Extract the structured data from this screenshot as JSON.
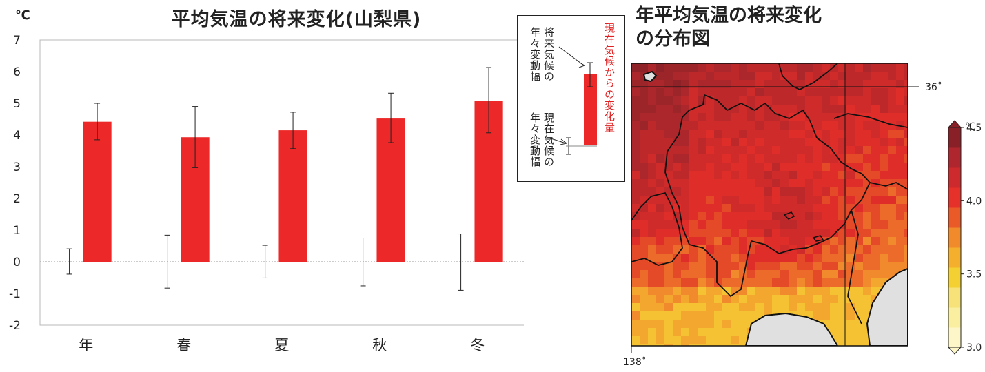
{
  "bar_chart": {
    "title": "平均気温の将来変化(山梨県)",
    "unit": "℃"
  },
  "legend": {
    "future_label_1": "将来気候の",
    "future_label_2": "年々変動幅",
    "current_label_1": "現在気候の",
    "current_label_2": "年々変動幅",
    "change_label": "現在気候からの変化量"
  },
  "map": {
    "title_line1": "年平均気温の将来変化",
    "title_line2": "の分布図",
    "lat_label": "36˚",
    "lon_label": "138˚",
    "colorbar_unit": "℃",
    "colorbar_ticks": [
      "3.0",
      "3.5",
      "4.0",
      "4.5"
    ],
    "colorbar_colors": [
      "#fdf6c8",
      "#faeea0",
      "#f6e278",
      "#f4d033",
      "#f4b02d",
      "#f08a2a",
      "#ea5a28",
      "#e6302a",
      "#cc2a2c",
      "#b0262e",
      "#8a2027"
    ]
  },
  "chart_data": {
    "type": "bar",
    "categories": [
      "年",
      "春",
      "夏",
      "秋",
      "冬"
    ],
    "series": [
      {
        "values": [
          4.42,
          3.93,
          4.15,
          4.52,
          5.08
        ],
        "error_low": [
          3.85,
          2.97,
          3.57,
          3.76,
          4.07
        ],
        "error_high": [
          5.0,
          4.9,
          4.72,
          5.32,
          6.13
        ]
      }
    ],
    "current_variability": {
      "low": [
        -0.39,
        -0.83,
        -0.51,
        -0.76,
        -0.9
      ],
      "high": [
        0.41,
        0.84,
        0.52,
        0.75,
        0.88
      ]
    },
    "ylim": [
      -2,
      7
    ],
    "yticks": [
      -2,
      -1,
      0,
      1,
      2,
      3,
      4,
      5,
      6,
      7
    ],
    "bar_color": "#ec2828",
    "grid": false
  }
}
